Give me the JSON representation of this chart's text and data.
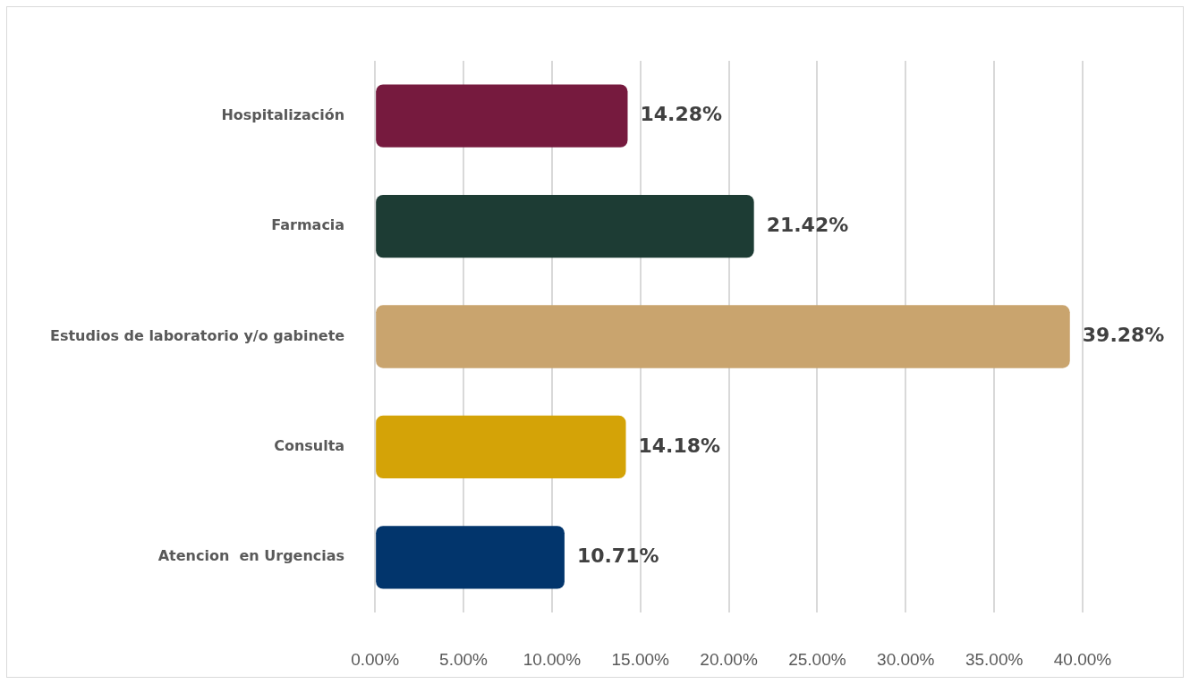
{
  "chart_data": {
    "type": "bar",
    "orientation": "horizontal",
    "categories": [
      "Hospitalización",
      "Farmacia",
      "Estudios de laboratorio y/o gabinete",
      "Consulta",
      "Atencion  en Urgencias"
    ],
    "values": [
      14.28,
      21.42,
      39.28,
      14.18,
      10.71
    ],
    "colors": [
      "#761a3e",
      "#1d3c34",
      "#c9a46e",
      "#d4a307",
      "#02356c"
    ],
    "value_labels": [
      "14.28%",
      "21.42%",
      "39.28%",
      "14.18%",
      "10.71%"
    ],
    "xlim": [
      0,
      40
    ],
    "xticks": [
      {
        "value": 0,
        "label": "0.00%"
      },
      {
        "value": 5,
        "label": "5.00%"
      },
      {
        "value": 10,
        "label": "10.00%"
      },
      {
        "value": 15,
        "label": "15.00%"
      },
      {
        "value": 20,
        "label": "20.00%"
      },
      {
        "value": 25,
        "label": "25.00%"
      },
      {
        "value": 30,
        "label": "30.00%"
      },
      {
        "value": 35,
        "label": "35.00%"
      },
      {
        "value": 40,
        "label": "40.00%"
      }
    ],
    "grid": "x"
  }
}
